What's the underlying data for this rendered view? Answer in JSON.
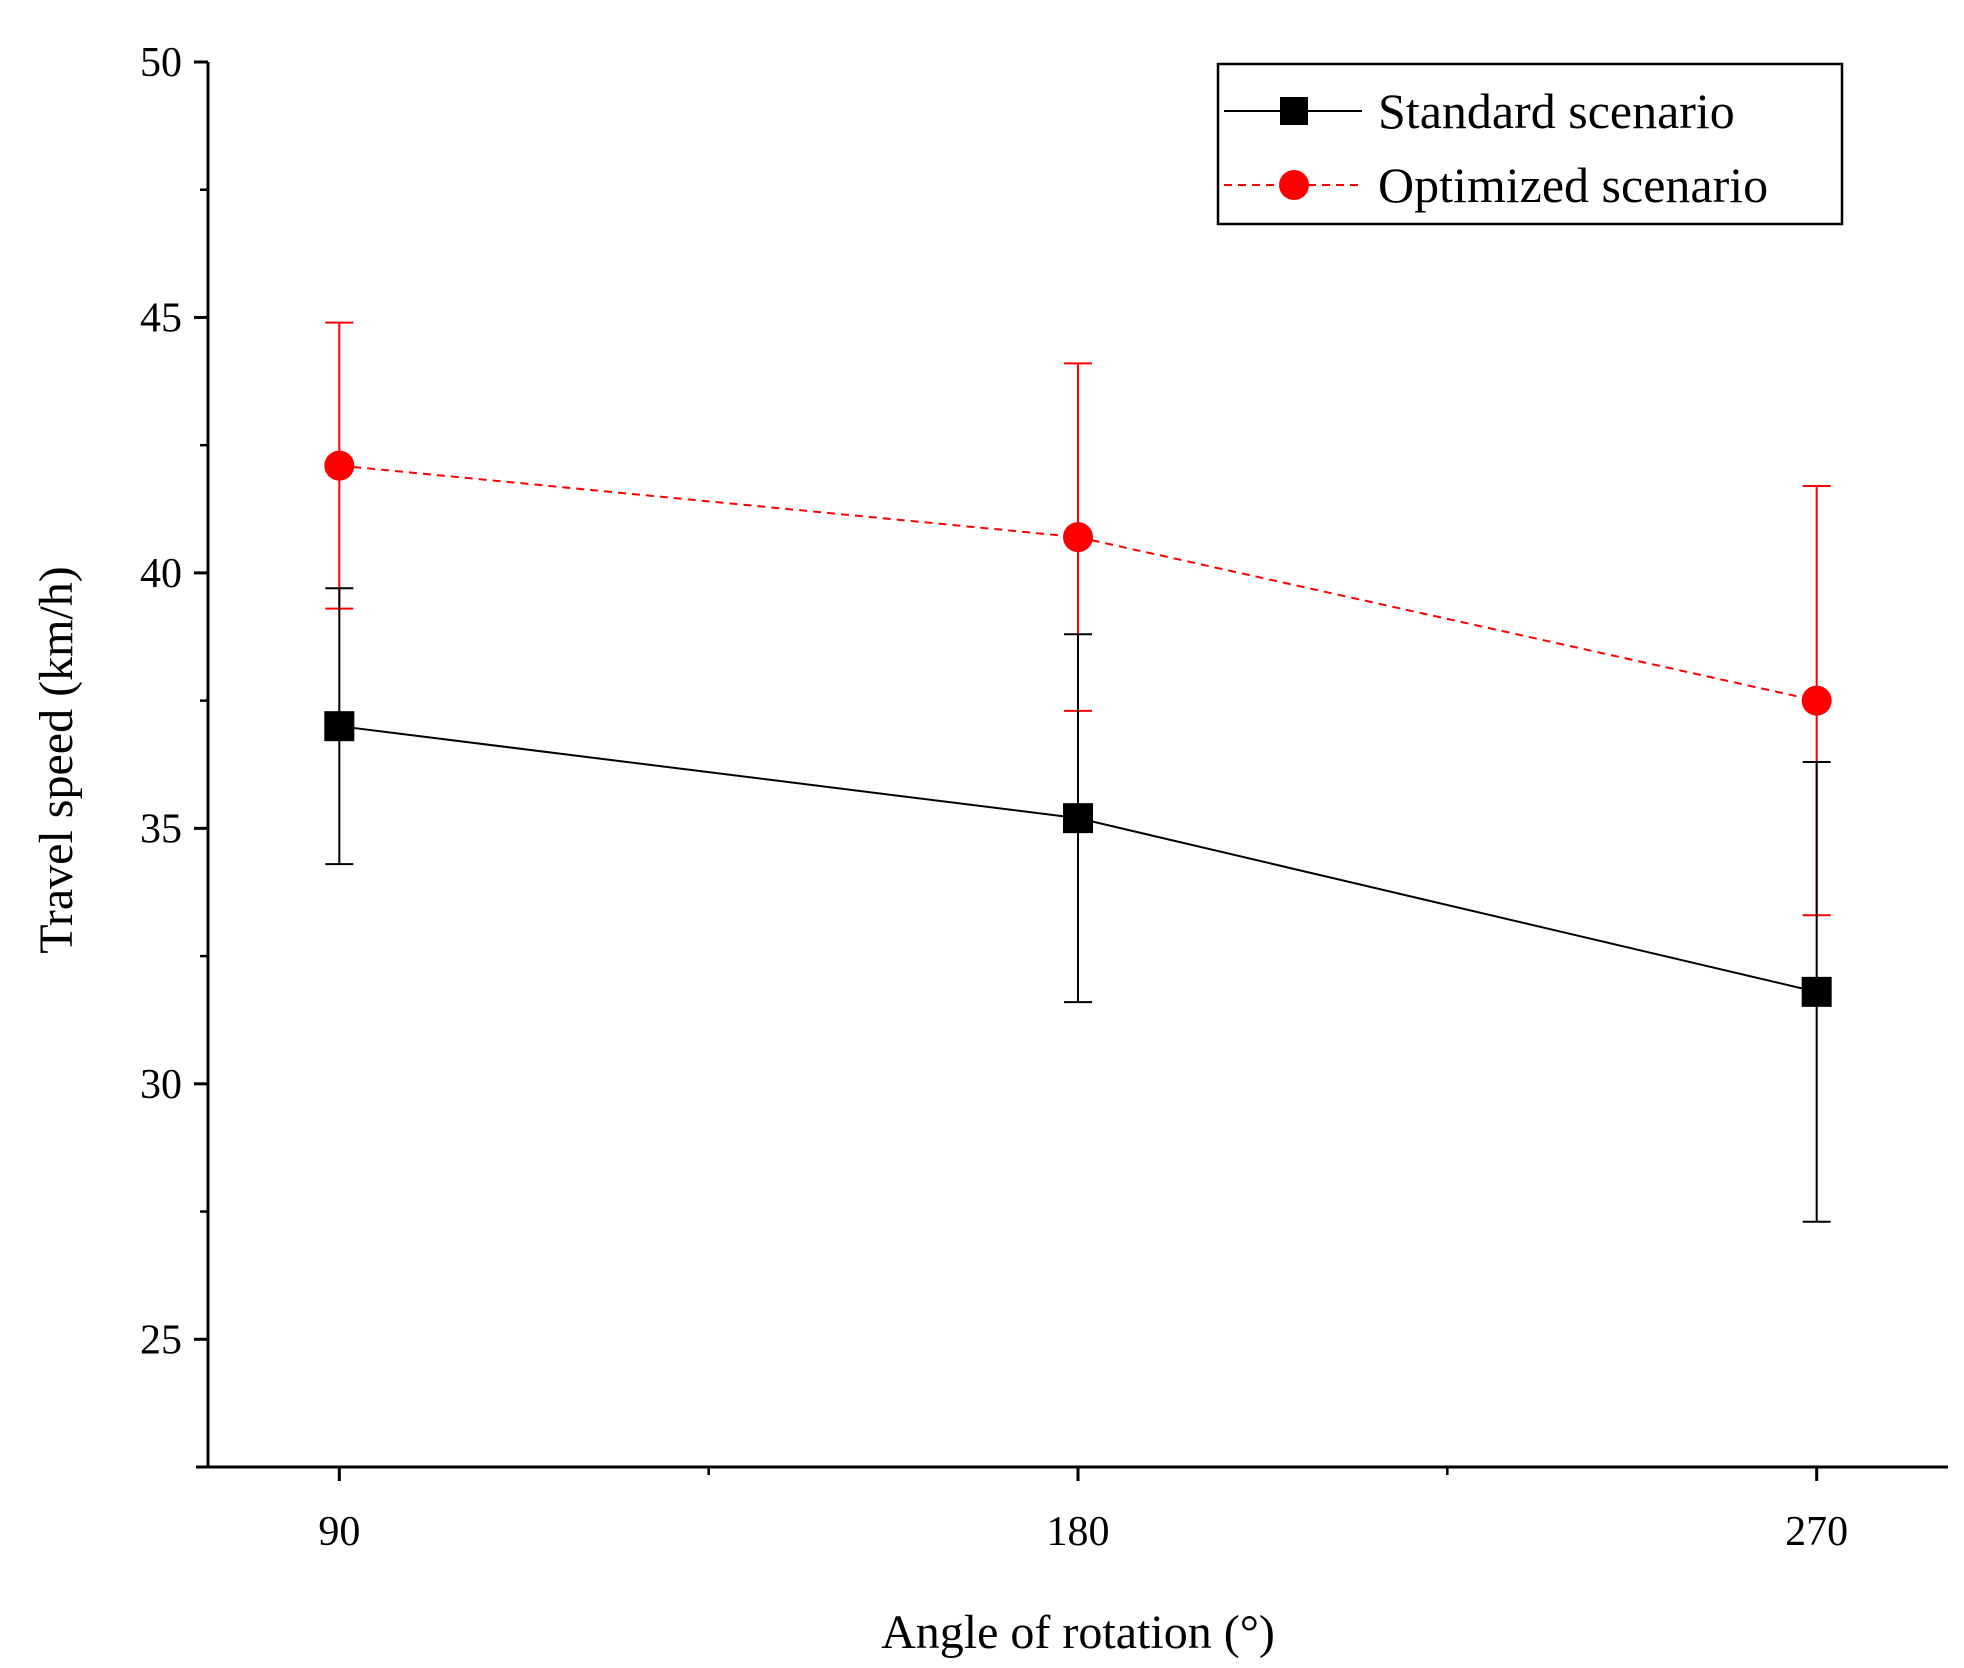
{
  "chart_data": {
    "type": "line",
    "title": "",
    "xlabel": "Angle of rotation (°)",
    "ylabel": "Travel speed (km/h)",
    "x": [
      90,
      180,
      270
    ],
    "xticks": [
      "90",
      "180",
      "270"
    ],
    "yticks": [
      "25",
      "30",
      "35",
      "40",
      "45",
      "50"
    ],
    "xlim": [
      74,
      286
    ],
    "ylim": [
      22.5,
      50
    ],
    "legend_position": "top-right",
    "series": [
      {
        "name": "Standard scenario",
        "color": "#000000",
        "marker": "square",
        "line": "solid",
        "values": [
          37.0,
          35.2,
          31.8
        ],
        "errors": [
          2.7,
          3.6,
          4.5
        ]
      },
      {
        "name": "Optimized scenario",
        "color": "#ff0000",
        "marker": "circle",
        "line": "dashed",
        "values": [
          42.1,
          40.7,
          37.5
        ],
        "errors": [
          2.8,
          3.4,
          4.2
        ]
      }
    ]
  }
}
